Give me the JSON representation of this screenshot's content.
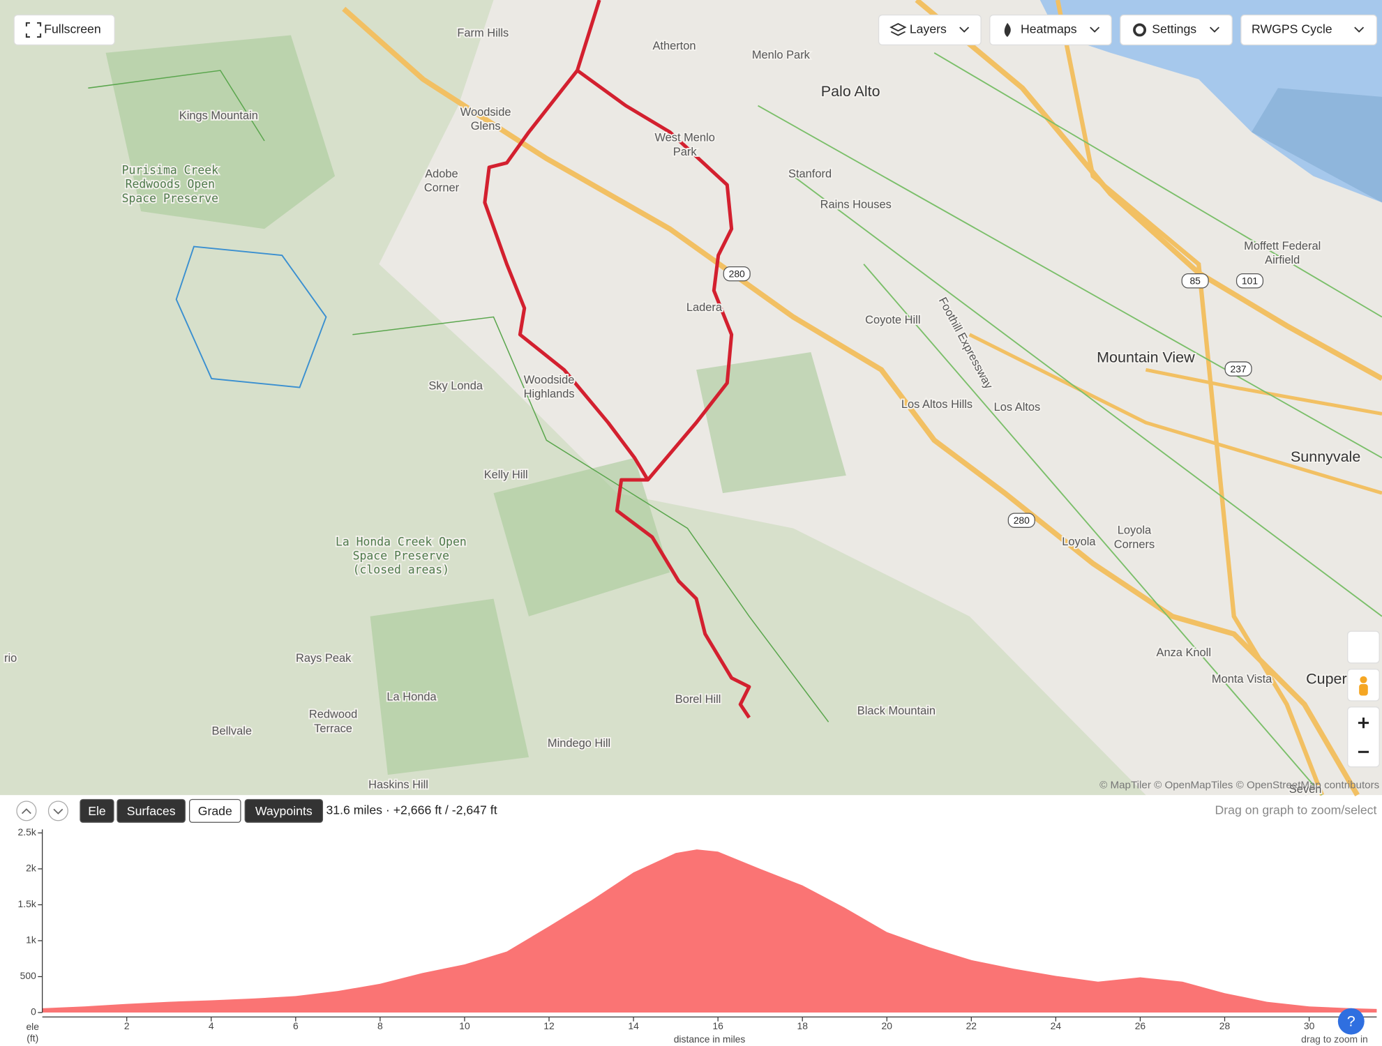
{
  "toolbar": {
    "fullscreen": "Fullscreen",
    "layers": "Layers",
    "heatmaps": "Heatmaps",
    "settings": "Settings",
    "map_style": "RWGPS Cycle"
  },
  "map": {
    "labels": [
      [
        "Farm Hills"
      ],
      [
        "Atherton"
      ],
      [
        "Menlo Park"
      ],
      [
        "Palo Alto"
      ],
      [
        "Kings Mountain"
      ],
      [
        "Woodside",
        "Glens"
      ],
      [
        "West Menlo",
        "Park"
      ],
      [
        "Purisima Creek",
        "Redwoods Open",
        "Space Preserve"
      ],
      [
        "Adobe",
        "Corner"
      ],
      [
        "Stanford"
      ],
      [
        "Rains Houses"
      ],
      [
        "Moffett Federal",
        "Airfield"
      ],
      [
        "Ladera"
      ],
      [
        "Coyote Hill"
      ],
      [
        "Foothill Expressway"
      ],
      [
        "Mountain View"
      ],
      [
        "Sky Londa"
      ],
      [
        "Woodside",
        "Highlands"
      ],
      [
        "Los Altos Hills"
      ],
      [
        "Los Altos"
      ],
      [
        "Sunnyvale"
      ],
      [
        "Kelly Hill"
      ],
      [
        "La Honda Creek Open",
        "Space Preserve",
        "(closed areas)"
      ],
      [
        "Loyola",
        "Corners"
      ],
      [
        "Loyola"
      ],
      [
        "Anza Knoll"
      ],
      [
        "Rays Peak"
      ],
      [
        "Monta Vista"
      ],
      [
        "Cuper"
      ],
      [
        "La Honda"
      ],
      [
        "Borel Hill"
      ],
      [
        "Black Mountain"
      ],
      [
        "Redwood",
        "Terrace"
      ],
      [
        "Bellvale"
      ],
      [
        "Mindego Hill"
      ],
      [
        "Haskins Hill"
      ],
      [
        "Seven"
      ],
      [
        "rio"
      ]
    ],
    "shields": [
      "280",
      "85",
      "101",
      "237",
      "280"
    ],
    "attribution": "© MapTiler © OpenMapTiles © OpenStreetMap contributors"
  },
  "profile_toolbar": {
    "tabs": [
      "Ele",
      "Surfaces",
      "Grade",
      "Waypoints"
    ],
    "stats": "31.6 miles · +2,666 ft / -2,647 ft",
    "hint": "Drag on graph to zoom/select",
    "zoom_hint": "drag to zoom in"
  },
  "chart_data": {
    "type": "area",
    "color": "#fa7474",
    "x_label": "distance in miles",
    "y_label": [
      "ele",
      "(ft)"
    ],
    "x": [
      0,
      1,
      2,
      3,
      4,
      5,
      6,
      7,
      8,
      9,
      10,
      11,
      12,
      13,
      14,
      15,
      15.5,
      16,
      17,
      18,
      19,
      20,
      21,
      22,
      23,
      24,
      25,
      26,
      27,
      28,
      29,
      30,
      31,
      31.6
    ],
    "values": [
      60,
      85,
      120,
      150,
      170,
      195,
      230,
      300,
      400,
      550,
      670,
      850,
      1200,
      1560,
      1950,
      2220,
      2270,
      2240,
      2000,
      1770,
      1460,
      1120,
      910,
      730,
      610,
      510,
      430,
      490,
      430,
      270,
      150,
      85,
      60,
      50
    ],
    "xlim": [
      0,
      31.6
    ],
    "ylim": [
      0,
      2500
    ],
    "xticks": [
      2,
      4,
      6,
      8,
      10,
      12,
      14,
      16,
      18,
      20,
      22,
      24,
      26,
      28,
      30
    ],
    "yticks": [
      0,
      500,
      {
        "value": 1000,
        "label": "1k"
      },
      {
        "value": 1500,
        "label": "1.5k"
      },
      {
        "value": 2000,
        "label": "2k"
      },
      {
        "value": 2500,
        "label": "2.5k"
      }
    ]
  }
}
